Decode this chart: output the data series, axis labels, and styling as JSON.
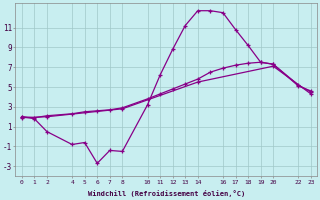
{
  "xlabel": "Windchill (Refroidissement éolien,°C)",
  "line_color": "#880088",
  "background_color": "#c8eef0",
  "grid_color": "#a0c8c8",
  "xlim": [
    -0.5,
    23.5
  ],
  "ylim": [
    -4.0,
    13.5
  ],
  "yticks": [
    -3,
    -1,
    1,
    3,
    5,
    7,
    9,
    11
  ],
  "xticks": [
    0,
    1,
    2,
    4,
    5,
    6,
    7,
    8,
    10,
    11,
    12,
    13,
    14,
    16,
    17,
    18,
    19,
    20,
    22,
    23
  ],
  "xtick_labels": [
    "0",
    "1",
    "2",
    "4",
    "5",
    "6",
    "7",
    "8",
    "10",
    "11",
    "12",
    "13",
    "14",
    "16",
    "17",
    "18",
    "19",
    "20",
    "22",
    "23"
  ],
  "line1_x": [
    0,
    1,
    2,
    4,
    5,
    6,
    7,
    8,
    10,
    11,
    12,
    13,
    14,
    15,
    16,
    17,
    18,
    19,
    20,
    22,
    23
  ],
  "line1_y": [
    2.0,
    1.8,
    0.5,
    -0.8,
    -0.6,
    -2.7,
    -1.4,
    -1.5,
    3.2,
    6.2,
    8.8,
    11.2,
    12.7,
    12.7,
    12.5,
    10.8,
    9.2,
    7.5,
    7.3,
    5.2,
    4.5
  ],
  "line2_x": [
    0,
    1,
    2,
    4,
    5,
    6,
    7,
    8,
    10,
    11,
    12,
    13,
    14,
    15,
    16,
    17,
    18,
    19,
    20,
    22,
    23
  ],
  "line2_y": [
    2.0,
    1.9,
    2.1,
    2.3,
    2.5,
    2.6,
    2.7,
    2.9,
    3.8,
    4.3,
    4.8,
    5.3,
    5.8,
    6.5,
    6.9,
    7.2,
    7.4,
    7.5,
    7.3,
    5.1,
    4.6
  ],
  "line3_x": [
    0,
    2,
    8,
    14,
    20,
    23
  ],
  "line3_y": [
    1.9,
    2.0,
    2.8,
    5.5,
    7.1,
    4.3
  ]
}
